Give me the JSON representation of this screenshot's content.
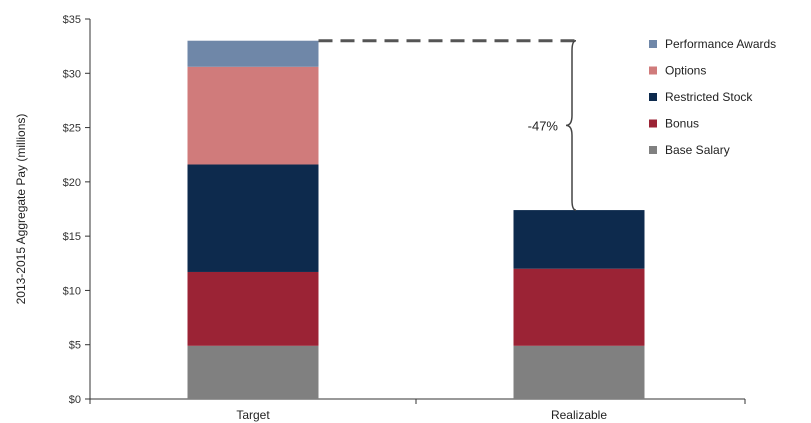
{
  "chart_data": {
    "type": "bar",
    "stacked": true,
    "categories": [
      "Target",
      "Realizable"
    ],
    "series": [
      {
        "name": "Base Salary",
        "color": "#808080",
        "values": [
          4.9,
          4.9
        ]
      },
      {
        "name": "Bonus",
        "color": "#9b2335",
        "values": [
          6.8,
          7.1
        ]
      },
      {
        "name": "Restricted Stock",
        "color": "#0d2a4d",
        "values": [
          9.9,
          5.4
        ]
      },
      {
        "name": "Options",
        "color": "#d07b7b",
        "values": [
          9.0,
          0
        ]
      },
      {
        "name": "Performance Awards",
        "color": "#6f87a8",
        "values": [
          2.4,
          0
        ]
      }
    ],
    "ylabel": "2013-2015 Aggregate Pay (millions)",
    "xlabel": "",
    "ylim": [
      0,
      35
    ],
    "yticks": [
      0,
      5,
      10,
      15,
      20,
      25,
      30,
      35
    ],
    "ytick_labels": [
      "$0",
      "$5",
      "$10",
      "$15",
      "$20",
      "$25",
      "$30",
      "$35"
    ],
    "legend_position": "top-right",
    "legend_order": [
      "Performance Awards",
      "Options",
      "Restricted Stock",
      "Bonus",
      "Base Salary"
    ],
    "annotation": {
      "text": "-47%"
    },
    "grid": false
  }
}
